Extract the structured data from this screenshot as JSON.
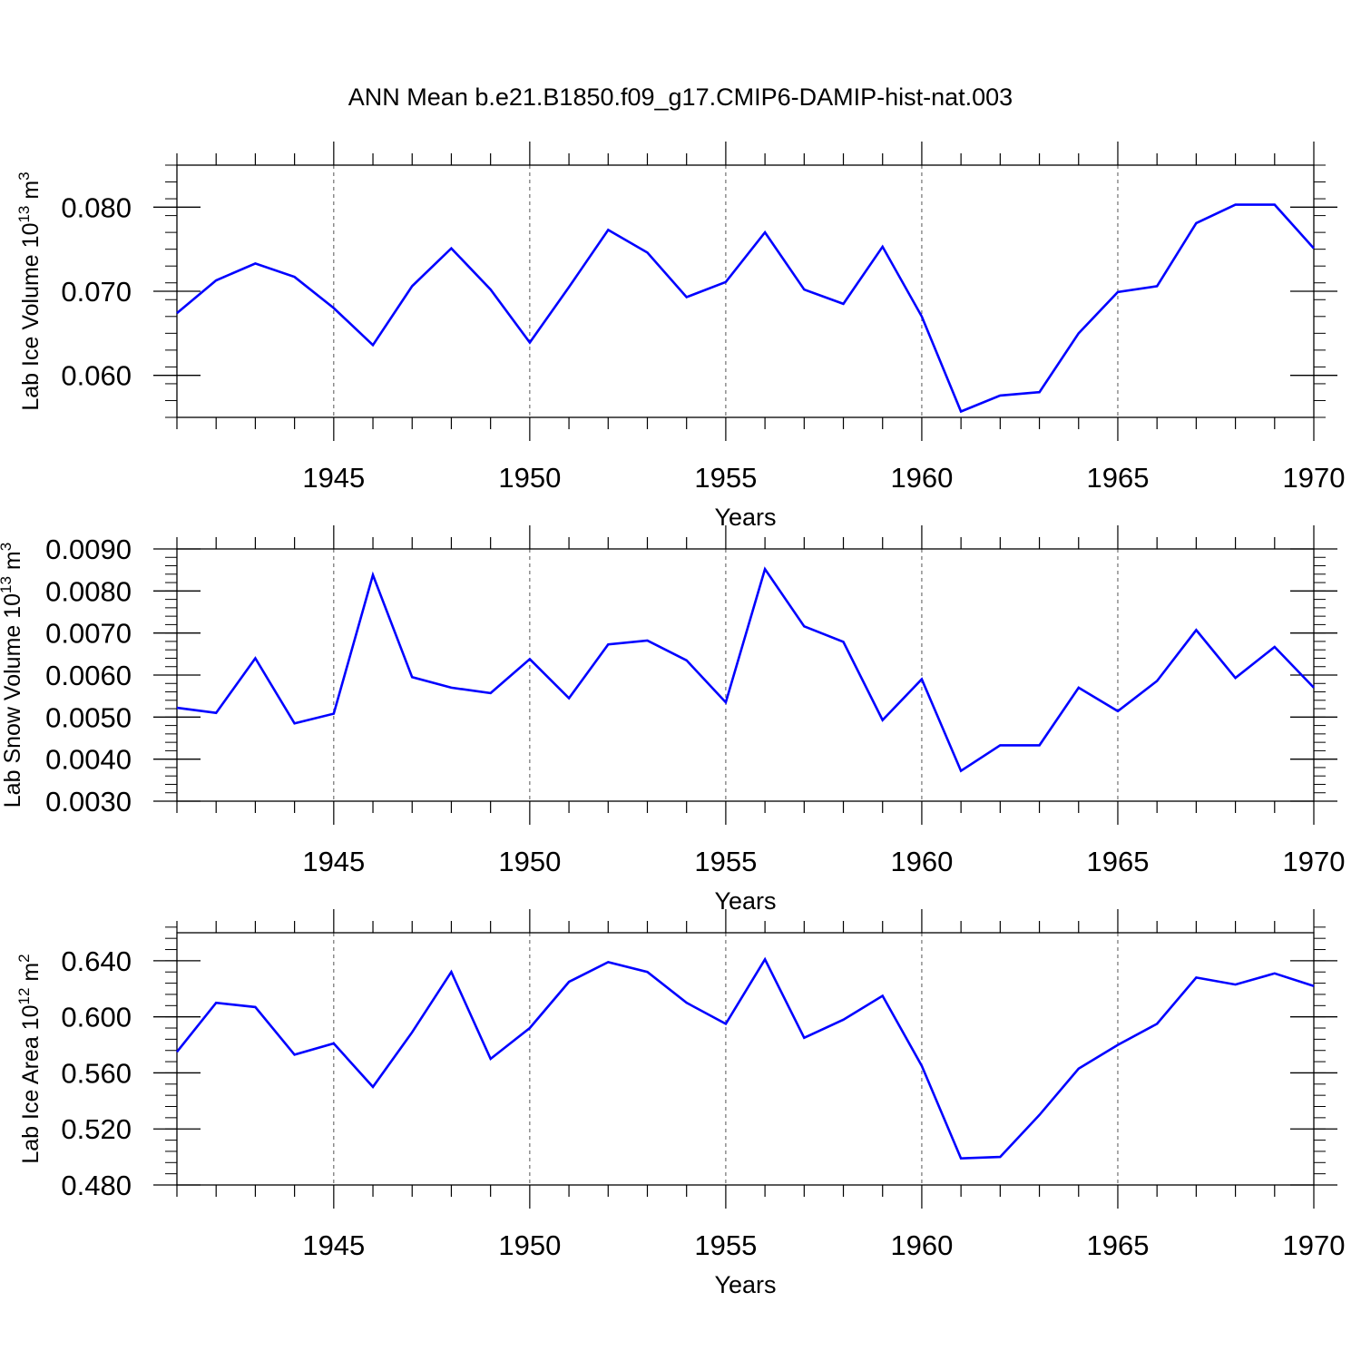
{
  "title": "ANN Mean b.e21.B1850.f09_g17.CMIP6-DAMIP-hist-nat.003",
  "line_color": "#0000ff",
  "chart_data": [
    {
      "type": "line",
      "ylabel_main": "Lab Ice Volume 10",
      "ylabel_exp": "13",
      "ylabel_unit": " m",
      "ylabel_unit_exp": "3",
      "xlabel": "Years",
      "xlim": [
        1941,
        1970
      ],
      "ylim": [
        0.055,
        0.085
      ],
      "yticks": [
        0.06,
        0.07,
        0.08
      ],
      "ytick_labels": [
        "0.060",
        "0.070",
        "0.080"
      ],
      "yminor": 0.002,
      "xticks": [
        1945,
        1950,
        1955,
        1960,
        1965,
        1970
      ],
      "xtick_labels": [
        "1945",
        "1950",
        "1955",
        "1960",
        "1965",
        "1970"
      ],
      "grid": "vertical dashed at major x ticks",
      "x": [
        1941,
        1942,
        1943,
        1944,
        1945,
        1946,
        1947,
        1948,
        1949,
        1950,
        1951,
        1952,
        1953,
        1954,
        1955,
        1956,
        1957,
        1958,
        1959,
        1960,
        1961,
        1962,
        1963,
        1964,
        1965,
        1966,
        1967,
        1968,
        1969,
        1970
      ],
      "y": [
        0.0674,
        0.0713,
        0.0733,
        0.0717,
        0.068,
        0.0636,
        0.0706,
        0.0751,
        0.0702,
        0.0639,
        0.0705,
        0.0773,
        0.0746,
        0.0693,
        0.0711,
        0.077,
        0.0702,
        0.0685,
        0.0753,
        0.067,
        0.0557,
        0.0576,
        0.058,
        0.065,
        0.0699,
        0.0706,
        0.0781,
        0.0803,
        0.0803,
        0.0751
      ]
    },
    {
      "type": "line",
      "ylabel_main": "Lab Snow Volume 10",
      "ylabel_exp": "13",
      "ylabel_unit": " m",
      "ylabel_unit_exp": "3",
      "xlabel": "Years",
      "xlim": [
        1941,
        1970
      ],
      "ylim": [
        0.003,
        0.009
      ],
      "yticks": [
        0.003,
        0.004,
        0.005,
        0.006,
        0.007,
        0.008,
        0.009
      ],
      "ytick_labels": [
        "0.0030",
        "0.0040",
        "0.0050",
        "0.0060",
        "0.0070",
        "0.0080",
        "0.0090"
      ],
      "yminor": 0.0002,
      "xticks": [
        1945,
        1950,
        1955,
        1960,
        1965,
        1970
      ],
      "xtick_labels": [
        "1945",
        "1950",
        "1955",
        "1960",
        "1965",
        "1970"
      ],
      "grid": "vertical dashed at major x ticks",
      "x": [
        1941,
        1942,
        1943,
        1944,
        1945,
        1946,
        1947,
        1948,
        1949,
        1950,
        1951,
        1952,
        1953,
        1954,
        1955,
        1956,
        1957,
        1958,
        1959,
        1960,
        1961,
        1962,
        1963,
        1964,
        1965,
        1966,
        1967,
        1968,
        1969,
        1970
      ],
      "y": [
        0.00522,
        0.0051,
        0.0064,
        0.00485,
        0.00508,
        0.00838,
        0.00595,
        0.0057,
        0.00557,
        0.00638,
        0.00545,
        0.00673,
        0.00682,
        0.00635,
        0.00535,
        0.00852,
        0.00716,
        0.00679,
        0.00493,
        0.0059,
        0.00372,
        0.00433,
        0.00433,
        0.0057,
        0.00514,
        0.00586,
        0.00707,
        0.00593,
        0.00667,
        0.0057
      ]
    },
    {
      "type": "line",
      "ylabel_main": "Lab Ice Area 10",
      "ylabel_exp": "12",
      "ylabel_unit": " m",
      "ylabel_unit_exp": "2",
      "xlabel": "Years",
      "xlim": [
        1941,
        1970
      ],
      "ylim": [
        0.48,
        0.66
      ],
      "yticks": [
        0.48,
        0.52,
        0.56,
        0.6,
        0.64
      ],
      "ytick_labels": [
        "0.480",
        "0.520",
        "0.560",
        "0.600",
        "0.640"
      ],
      "yminor": 0.008,
      "xticks": [
        1945,
        1950,
        1955,
        1960,
        1965,
        1970
      ],
      "xtick_labels": [
        "1945",
        "1950",
        "1955",
        "1960",
        "1965",
        "1970"
      ],
      "grid": "vertical dashed at major x ticks",
      "x": [
        1941,
        1942,
        1943,
        1944,
        1945,
        1946,
        1947,
        1948,
        1949,
        1950,
        1951,
        1952,
        1953,
        1954,
        1955,
        1956,
        1957,
        1958,
        1959,
        1960,
        1961,
        1962,
        1963,
        1964,
        1965,
        1966,
        1967,
        1968,
        1969,
        1970
      ],
      "y": [
        0.575,
        0.61,
        0.607,
        0.573,
        0.581,
        0.55,
        0.589,
        0.632,
        0.57,
        0.592,
        0.625,
        0.639,
        0.632,
        0.61,
        0.595,
        0.641,
        0.585,
        0.598,
        0.615,
        0.565,
        0.499,
        0.5,
        0.53,
        0.563,
        0.58,
        0.595,
        0.628,
        0.623,
        0.631,
        0.622
      ]
    }
  ]
}
